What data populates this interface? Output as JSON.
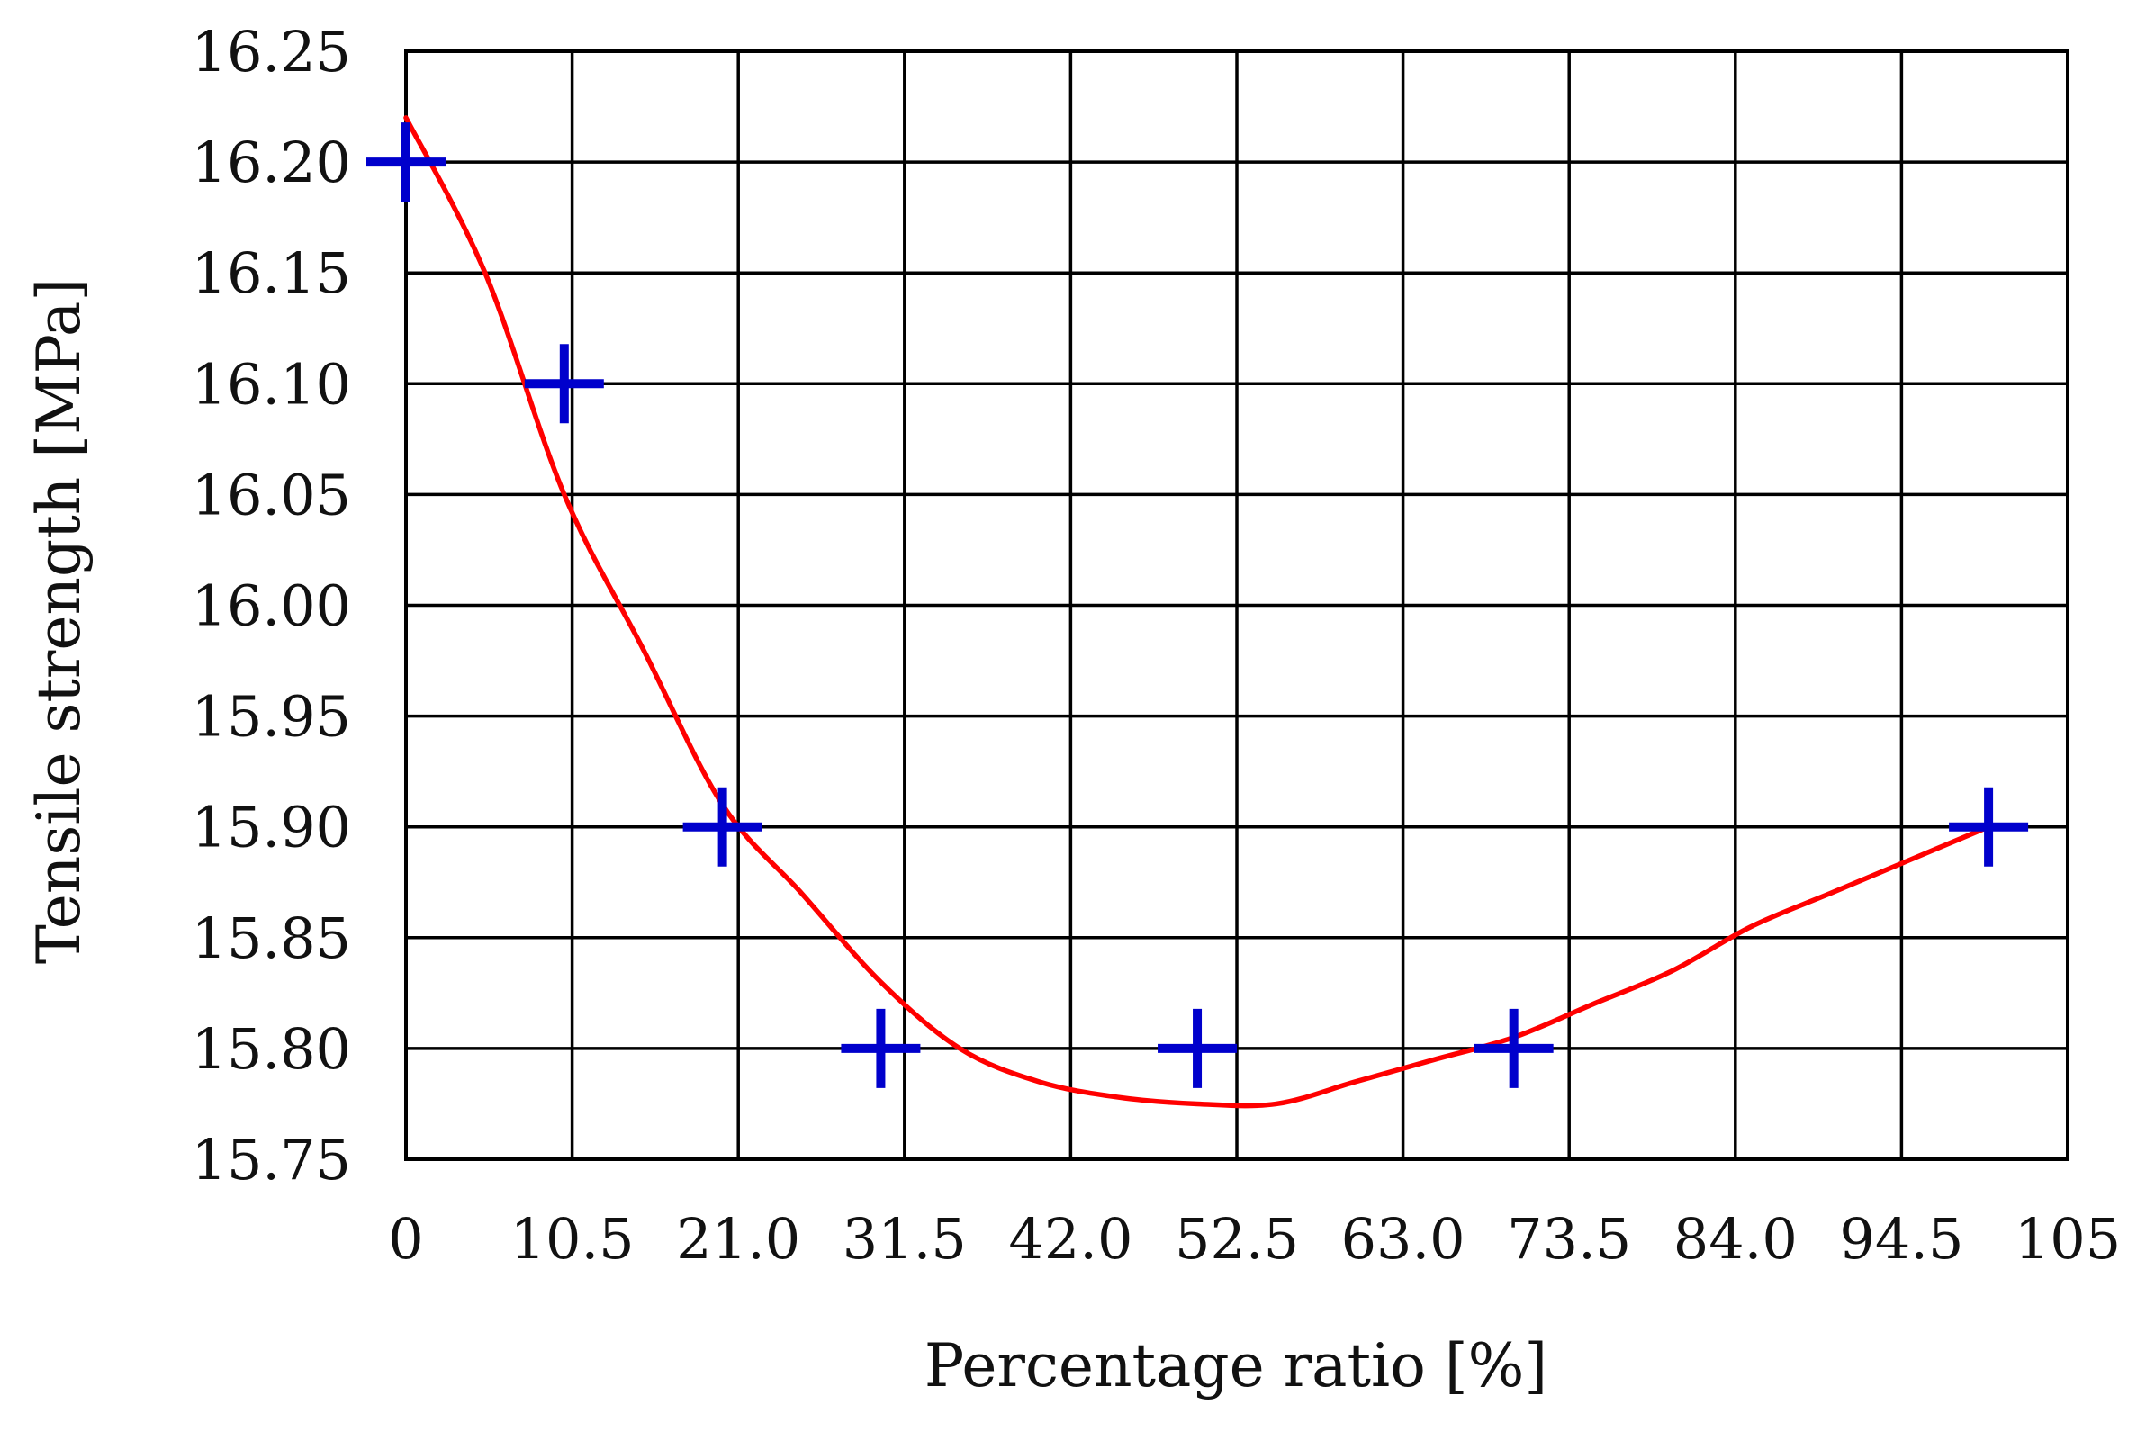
{
  "chart_data": {
    "type": "scatter",
    "title": "",
    "xlabel": "Percentage ratio [%]",
    "ylabel": "Tensile strength [MPa]",
    "xlim": [
      0,
      105
    ],
    "ylim": [
      15.75,
      16.25
    ],
    "x_ticks": [
      "0",
      "10.5",
      "21.0",
      "31.5",
      "42.0",
      "52.5",
      "63.0",
      "73.5",
      "84.0",
      "94.5",
      "105"
    ],
    "y_ticks": [
      "15.75",
      "15.80",
      "15.85",
      "15.90",
      "15.95",
      "16.00",
      "16.05",
      "16.10",
      "16.15",
      "16.20",
      "16.25"
    ],
    "grid": true,
    "series": [
      {
        "kind": "markers",
        "marker": "plus",
        "color": "#0000cc",
        "points": [
          {
            "x": 0,
            "y": 16.2
          },
          {
            "x": 10,
            "y": 16.1
          },
          {
            "x": 20,
            "y": 15.9
          },
          {
            "x": 30,
            "y": 15.8
          },
          {
            "x": 50,
            "y": 15.8
          },
          {
            "x": 70,
            "y": 15.8
          },
          {
            "x": 100,
            "y": 15.9
          }
        ]
      },
      {
        "kind": "fitted-curve",
        "color": "#ff0000",
        "points": [
          {
            "x": 0,
            "y": 16.22
          },
          {
            "x": 5,
            "y": 16.15
          },
          {
            "x": 10,
            "y": 16.05
          },
          {
            "x": 15,
            "y": 15.98
          },
          {
            "x": 20,
            "y": 15.91
          },
          {
            "x": 25,
            "y": 15.87
          },
          {
            "x": 30,
            "y": 15.83
          },
          {
            "x": 35,
            "y": 15.8
          },
          {
            "x": 40,
            "y": 15.785
          },
          {
            "x": 45,
            "y": 15.778
          },
          {
            "x": 50,
            "y": 15.775
          },
          {
            "x": 55,
            "y": 15.775
          },
          {
            "x": 60,
            "y": 15.785
          },
          {
            "x": 65,
            "y": 15.795
          },
          {
            "x": 70,
            "y": 15.805
          },
          {
            "x": 75,
            "y": 15.82
          },
          {
            "x": 80,
            "y": 15.835
          },
          {
            "x": 85,
            "y": 15.855
          },
          {
            "x": 90,
            "y": 15.87
          },
          {
            "x": 95,
            "y": 15.885
          },
          {
            "x": 100,
            "y": 15.9
          }
        ]
      }
    ]
  }
}
